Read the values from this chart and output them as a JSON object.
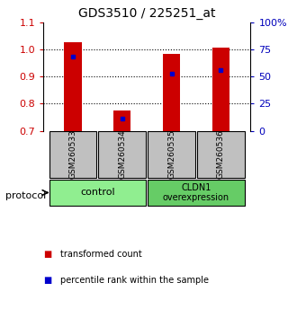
{
  "title": "GDS3510 / 225251_at",
  "samples": [
    "GSM260533",
    "GSM260534",
    "GSM260535",
    "GSM260536"
  ],
  "groups": [
    {
      "label": "control",
      "indices": [
        0,
        1
      ],
      "color": "#90EE90"
    },
    {
      "label": "CLDN1\noverexpression",
      "indices": [
        2,
        3
      ],
      "color": "#66CC66"
    }
  ],
  "bar_bottom": 0.7,
  "bar_tops": [
    1.025,
    0.775,
    0.985,
    1.005
  ],
  "blue_marker_values": [
    0.975,
    0.745,
    0.91,
    0.925
  ],
  "ylim": [
    0.7,
    1.1
  ],
  "yticks_left": [
    0.7,
    0.8,
    0.9,
    1.0,
    1.1
  ],
  "yticks_right": [
    0,
    25,
    50,
    75,
    100
  ],
  "bar_color": "#CC0000",
  "marker_color": "#0000CC",
  "sample_box_color": "#C0C0C0",
  "legend_red_label": "transformed count",
  "legend_blue_label": "percentile rank within the sample",
  "protocol_label": "protocol",
  "right_yaxis_color": "#0000BB",
  "left_yaxis_color": "#CC0000",
  "bar_width": 0.35
}
